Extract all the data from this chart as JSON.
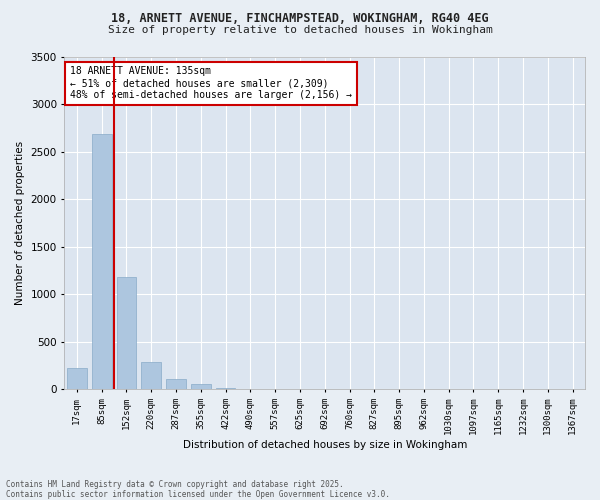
{
  "title_line1": "18, ARNETT AVENUE, FINCHAMPSTEAD, WOKINGHAM, RG40 4EG",
  "title_line2": "Size of property relative to detached houses in Wokingham",
  "xlabel": "Distribution of detached houses by size in Wokingham",
  "ylabel": "Number of detached properties",
  "categories": [
    "17sqm",
    "85sqm",
    "152sqm",
    "220sqm",
    "287sqm",
    "355sqm",
    "422sqm",
    "490sqm",
    "557sqm",
    "625sqm",
    "692sqm",
    "760sqm",
    "827sqm",
    "895sqm",
    "962sqm",
    "1030sqm",
    "1097sqm",
    "1165sqm",
    "1232sqm",
    "1300sqm",
    "1367sqm"
  ],
  "values": [
    220,
    2680,
    1175,
    290,
    105,
    55,
    15,
    0,
    0,
    0,
    0,
    0,
    0,
    0,
    0,
    0,
    0,
    0,
    0,
    0,
    0
  ],
  "bar_color": "#adc6df",
  "bar_edge_color": "#88aac8",
  "vline_color": "#cc0000",
  "vline_position": 1.5,
  "ylim": [
    0,
    3500
  ],
  "yticks": [
    0,
    500,
    1000,
    1500,
    2000,
    2500,
    3000,
    3500
  ],
  "annotation_title": "18 ARNETT AVENUE: 135sqm",
  "annotation_line2": "← 51% of detached houses are smaller (2,309)",
  "annotation_line3": "48% of semi-detached houses are larger (2,156) →",
  "annotation_box_color": "#cc0000",
  "footer_line1": "Contains HM Land Registry data © Crown copyright and database right 2025.",
  "footer_line2": "Contains public sector information licensed under the Open Government Licence v3.0.",
  "bg_color": "#e8eef4",
  "plot_bg_color": "#dce5f0"
}
